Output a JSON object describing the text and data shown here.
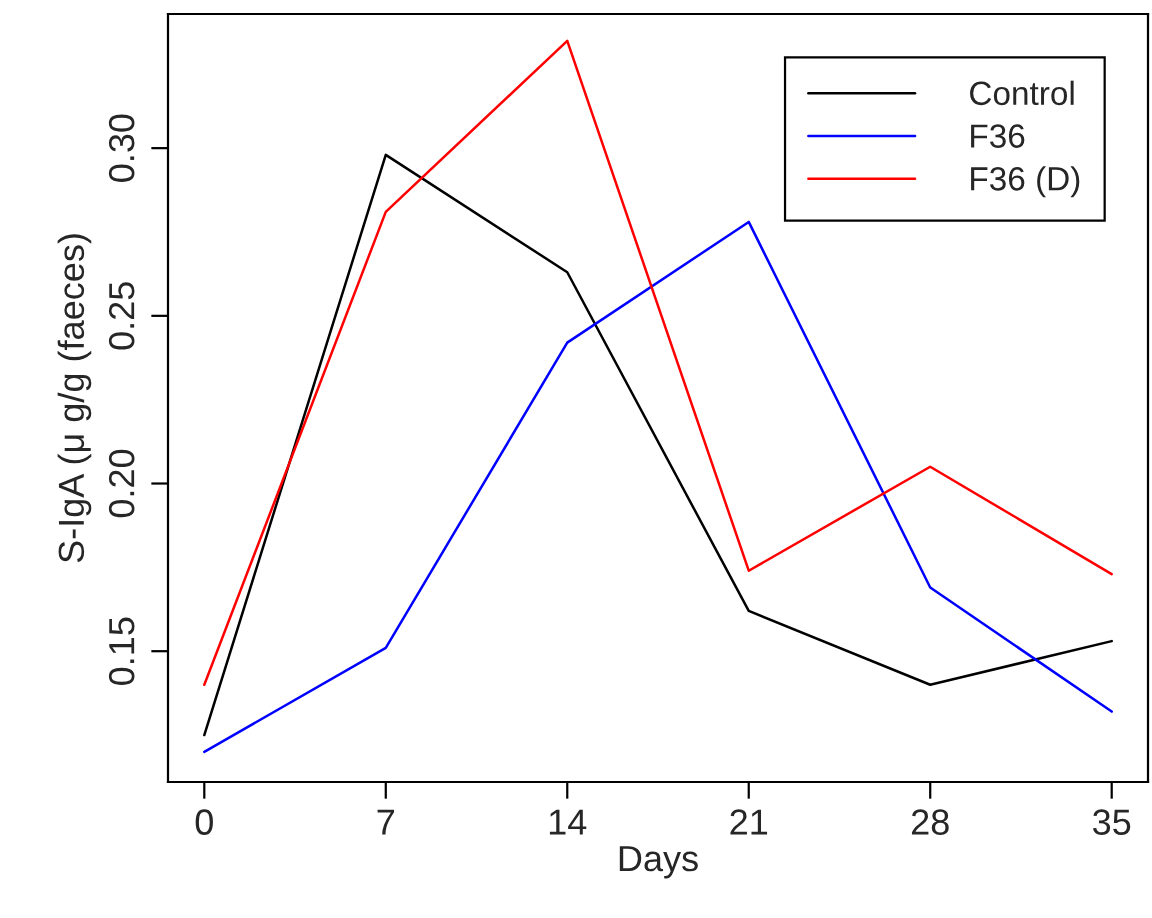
{
  "chart_data": {
    "type": "line",
    "xlabel": "Days",
    "ylabel": "S-IgA (μ g/g (faeces)",
    "x": [
      0,
      7,
      14,
      21,
      28,
      35
    ],
    "series": [
      {
        "name": "Control",
        "color": "#000000",
        "values": [
          0.125,
          0.298,
          0.263,
          0.162,
          0.14,
          0.153
        ]
      },
      {
        "name": "F36",
        "color": "#0000ff",
        "values": [
          0.12,
          0.151,
          0.242,
          0.278,
          0.169,
          0.132
        ]
      },
      {
        "name": "F36 (D)",
        "color": "#ff0000",
        "values": [
          0.14,
          0.281,
          0.332,
          0.174,
          0.205,
          0.173
        ]
      }
    ],
    "xlim": [
      -1.4,
      36.4
    ],
    "ylim": [
      0.111,
      0.34
    ],
    "xticks": [
      0,
      7,
      14,
      21,
      28,
      35
    ],
    "yticks": [
      0.15,
      {
        "value": 0.2,
        "label": "0.20"
      },
      0.25,
      {
        "value": 0.3,
        "label": "0.30"
      }
    ],
    "grid": false,
    "legend": "top right",
    "marker": "none",
    "line_style": "solid"
  }
}
